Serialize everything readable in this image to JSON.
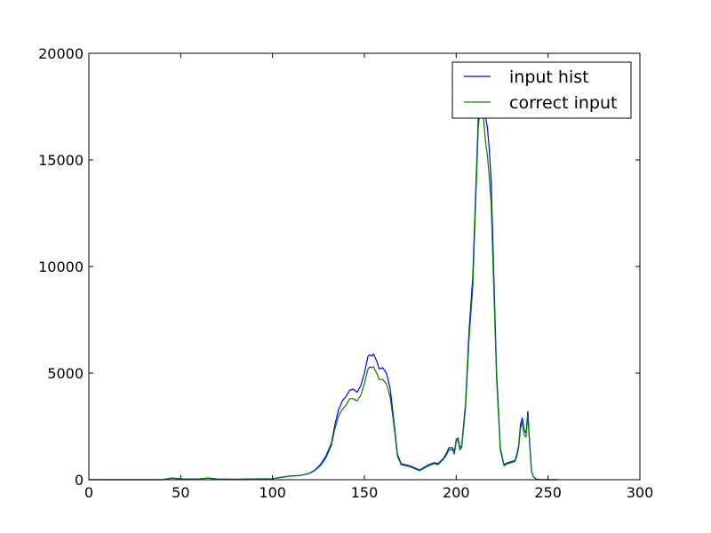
{
  "chart_data": {
    "type": "line",
    "title": "",
    "xlabel": "",
    "ylabel": "",
    "xlim": [
      0,
      300
    ],
    "ylim": [
      0,
      20000
    ],
    "xticks": [
      0,
      50,
      100,
      150,
      200,
      250,
      300
    ],
    "yticks": [
      0,
      5000,
      10000,
      15000,
      20000
    ],
    "xtick_labels": [
      "0",
      "50",
      "100",
      "150",
      "200",
      "250",
      "300"
    ],
    "ytick_labels": [
      "0",
      "5000",
      "10000",
      "15000",
      "20000"
    ],
    "grid": false,
    "legend": {
      "placement": "top-right"
    },
    "series": [
      {
        "name": "input hist",
        "color": "#0000ff",
        "x": [
          0,
          20,
          40,
          45,
          48,
          52,
          60,
          65,
          70,
          80,
          90,
          100,
          105,
          110,
          115,
          120,
          123,
          126,
          129,
          132,
          134,
          136,
          138,
          140,
          142,
          144,
          146,
          148,
          150,
          152,
          153,
          154,
          155,
          156,
          157,
          158,
          160,
          162,
          164,
          166,
          168,
          170,
          175,
          180,
          185,
          188,
          190,
          193,
          195,
          196,
          198,
          199,
          200,
          201,
          202,
          203,
          205,
          207,
          209,
          210,
          211,
          212,
          213,
          214,
          215,
          216,
          217,
          218,
          219,
          220,
          222,
          224,
          226,
          228,
          230,
          232,
          233,
          234,
          235,
          236,
          237,
          238,
          239,
          240,
          241,
          242,
          243,
          244,
          246,
          248,
          250,
          255
        ],
        "y": [
          0,
          0,
          0,
          80,
          60,
          30,
          40,
          80,
          30,
          20,
          40,
          50,
          120,
          180,
          200,
          300,
          450,
          700,
          1100,
          1700,
          2600,
          3300,
          3700,
          3900,
          4200,
          4250,
          4100,
          4400,
          5000,
          5800,
          5850,
          5800,
          5900,
          5700,
          5500,
          5200,
          5250,
          5000,
          4300,
          2800,
          1200,
          750,
          650,
          450,
          700,
          800,
          750,
          1000,
          1300,
          1500,
          1500,
          1300,
          1900,
          1950,
          1500,
          1600,
          3500,
          7000,
          9500,
          12000,
          14500,
          17000,
          18600,
          18800,
          17800,
          17000,
          16500,
          15500,
          14000,
          11000,
          5000,
          1500,
          700,
          800,
          850,
          900,
          1200,
          1600,
          2600,
          2900,
          2300,
          2200,
          3200,
          1700,
          400,
          150,
          60,
          20,
          0,
          0,
          0,
          0
        ]
      },
      {
        "name": "correct input",
        "color": "#008000",
        "x": [
          0,
          20,
          40,
          45,
          48,
          52,
          60,
          65,
          70,
          80,
          90,
          100,
          105,
          110,
          115,
          120,
          123,
          126,
          129,
          132,
          134,
          136,
          138,
          140,
          142,
          144,
          146,
          148,
          150,
          152,
          153,
          154,
          155,
          156,
          157,
          158,
          160,
          162,
          164,
          166,
          168,
          170,
          175,
          180,
          185,
          188,
          190,
          193,
          195,
          196,
          198,
          199,
          200,
          201,
          202,
          203,
          205,
          207,
          209,
          210,
          211,
          212,
          213,
          214,
          215,
          216,
          217,
          218,
          219,
          220,
          222,
          224,
          226,
          228,
          230,
          232,
          233,
          234,
          235,
          236,
          237,
          238,
          239,
          240,
          241,
          242,
          243,
          244,
          246,
          248,
          250,
          255
        ],
        "y": [
          0,
          0,
          0,
          70,
          50,
          25,
          35,
          70,
          25,
          15,
          35,
          45,
          110,
          170,
          190,
          290,
          430,
          650,
          1000,
          1600,
          2400,
          3000,
          3300,
          3500,
          3800,
          3800,
          3700,
          3950,
          4500,
          5200,
          5300,
          5250,
          5300,
          5100,
          4950,
          4700,
          4700,
          4500,
          3900,
          2600,
          1100,
          700,
          600,
          420,
          650,
          750,
          700,
          950,
          1200,
          1400,
          1400,
          1200,
          1800,
          1850,
          1400,
          1500,
          3300,
          6600,
          9000,
          11500,
          14000,
          16500,
          17400,
          17600,
          16800,
          15800,
          15200,
          14200,
          13000,
          10200,
          4700,
          1400,
          650,
          750,
          800,
          850,
          1100,
          1500,
          2400,
          2700,
          2100,
          2000,
          3000,
          1600,
          380,
          140,
          55,
          18,
          0,
          0,
          0,
          0
        ]
      }
    ]
  }
}
